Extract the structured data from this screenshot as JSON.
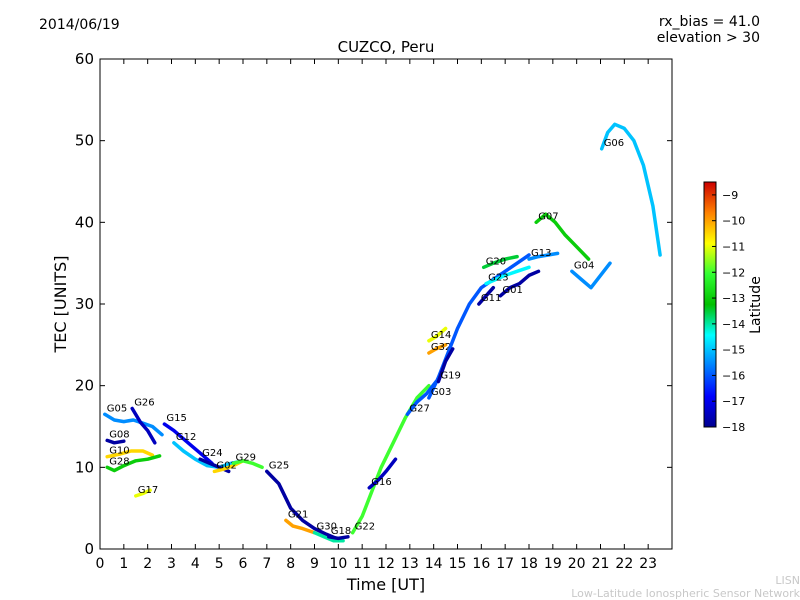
{
  "date_label": "2014/06/19",
  "info": {
    "line1": "rx_bias = 41.0",
    "line2": "elevation > 30"
  },
  "credit": {
    "line1": "LISN",
    "line2": "Low-Latitude Ionospheric Sensor Network"
  },
  "chart_data": {
    "type": "scatter",
    "title": "CUZCO, Peru",
    "xlabel": "Time [UT]",
    "ylabel": "TEC [UNITS]",
    "xlim": [
      0,
      24
    ],
    "ylim": [
      0,
      60
    ],
    "x_ticks": [
      0,
      1,
      2,
      3,
      4,
      5,
      6,
      7,
      8,
      9,
      10,
      11,
      12,
      13,
      14,
      15,
      16,
      17,
      18,
      19,
      20,
      21,
      22,
      23
    ],
    "y_ticks": [
      0,
      10,
      20,
      30,
      40,
      50,
      60
    ],
    "colorbar": {
      "label": "Latitude",
      "min": -18,
      "max": -8.5,
      "ticks": [
        -9,
        -10,
        -11,
        -12,
        -13,
        -14,
        -15,
        -16,
        -17,
        -18
      ]
    },
    "series": [
      {
        "name": "G05",
        "lat": -15.5,
        "x": [
          0.2,
          0.6,
          1.0,
          1.4,
          1.8,
          2.2,
          2.6
        ],
        "y": [
          16.5,
          15.8,
          15.6,
          15.8,
          15.4,
          15.0,
          14.0
        ]
      },
      {
        "name": "G26",
        "lat": -17.5,
        "x": [
          1.35,
          1.7,
          2.0,
          2.3
        ],
        "y": [
          17.2,
          15.5,
          14.5,
          13.0
        ]
      },
      {
        "name": "G08",
        "lat": -17.8,
        "x": [
          0.3,
          0.6,
          1.0
        ],
        "y": [
          13.3,
          13.0,
          13.2
        ]
      },
      {
        "name": "G10",
        "lat": -10.5,
        "x": [
          0.3,
          0.8,
          1.3,
          1.8,
          2.2
        ],
        "y": [
          11.3,
          11.6,
          12.0,
          12.0,
          11.5
        ]
      },
      {
        "name": "G28",
        "lat": -13.0,
        "x": [
          0.3,
          0.6,
          1.0,
          1.5,
          2.0,
          2.5
        ],
        "y": [
          10.0,
          9.6,
          10.2,
          10.8,
          11.0,
          11.4
        ]
      },
      {
        "name": "G17",
        "lat": -11.0,
        "x": [
          1.5,
          1.8,
          2.1
        ],
        "y": [
          6.5,
          6.8,
          7.2
        ]
      },
      {
        "name": "G15",
        "lat": -17.0,
        "x": [
          2.7,
          3.1,
          3.5,
          3.9,
          4.3,
          4.7
        ],
        "y": [
          15.3,
          14.5,
          13.5,
          12.5,
          11.5,
          10.5
        ]
      },
      {
        "name": "G12",
        "lat": -15.0,
        "x": [
          3.1,
          3.5,
          4.0,
          4.5,
          5.0,
          5.5,
          6.0
        ],
        "y": [
          13.0,
          12.0,
          11.0,
          10.2,
          10.0,
          10.5,
          10.8
        ]
      },
      {
        "name": "G24",
        "lat": -17.8,
        "x": [
          4.2,
          4.6,
          5.0,
          5.4
        ],
        "y": [
          11.0,
          10.5,
          10.0,
          9.5
        ]
      },
      {
        "name": "G02",
        "lat": -10.5,
        "x": [
          4.8,
          5.2,
          5.6,
          6.0
        ],
        "y": [
          9.5,
          9.8,
          10.2,
          10.8
        ]
      },
      {
        "name": "G29",
        "lat": -12.0,
        "x": [
          5.6,
          6.0,
          6.4,
          6.8
        ],
        "y": [
          10.5,
          10.8,
          10.5,
          10.0
        ]
      },
      {
        "name": "G25",
        "lat": -17.8,
        "x": [
          7.0,
          7.5,
          8.0,
          8.5,
          9.0,
          9.5,
          10.0
        ],
        "y": [
          9.5,
          8.0,
          5.0,
          3.5,
          2.5,
          1.8,
          1.2
        ]
      },
      {
        "name": "G21",
        "lat": -10.0,
        "x": [
          7.8,
          8.1,
          8.5,
          9.0
        ],
        "y": [
          3.5,
          2.8,
          2.5,
          2.0
        ]
      },
      {
        "name": "G30",
        "lat": -14.0,
        "x": [
          9.0,
          9.4,
          9.8,
          10.2
        ],
        "y": [
          2.0,
          1.5,
          1.0,
          1.0
        ]
      },
      {
        "name": "G18",
        "lat": -17.8,
        "x": [
          9.6,
          10.0,
          10.4
        ],
        "y": [
          1.5,
          1.3,
          1.5
        ]
      },
      {
        "name": "G22",
        "lat": -12.0,
        "x": [
          10.6,
          11.0,
          11.4,
          11.8,
          12.3,
          12.8,
          13.3,
          13.8
        ],
        "y": [
          2.0,
          4.0,
          7.0,
          10.0,
          13.0,
          16.0,
          18.5,
          20.0
        ]
      },
      {
        "name": "G16",
        "lat": -17.5,
        "x": [
          11.3,
          11.7,
          12.0,
          12.4
        ],
        "y": [
          7.5,
          8.5,
          9.5,
          11.0
        ]
      },
      {
        "name": "G27",
        "lat": -16.0,
        "x": [
          12.9,
          13.3,
          13.7,
          14.1
        ],
        "y": [
          16.5,
          18.0,
          19.0,
          20.5
        ]
      },
      {
        "name": "G14",
        "lat": -11.0,
        "x": [
          13.8,
          14.1,
          14.5
        ],
        "y": [
          25.5,
          26.0,
          27.0
        ]
      },
      {
        "name": "G32",
        "lat": -10.0,
        "x": [
          13.8,
          14.1,
          14.5
        ],
        "y": [
          24.0,
          24.5,
          25.0
        ]
      },
      {
        "name": "G03",
        "lat": -16.0,
        "x": [
          13.8,
          14.2,
          14.6,
          15.0,
          15.5,
          16.0,
          16.5,
          17.0,
          17.5,
          18.0
        ],
        "y": [
          18.5,
          21.0,
          24.0,
          27.0,
          30.0,
          32.0,
          33.0,
          34.0,
          35.0,
          36.0
        ]
      },
      {
        "name": "G19",
        "lat": -17.8,
        "x": [
          14.2,
          14.5,
          14.8
        ],
        "y": [
          20.5,
          23.0,
          24.5
        ]
      },
      {
        "name": "G11",
        "lat": -17.8,
        "x": [
          15.9,
          16.2,
          16.5
        ],
        "y": [
          30.0,
          31.0,
          32.0
        ]
      },
      {
        "name": "G20",
        "lat": -13.5,
        "x": [
          16.1,
          16.5,
          17.0,
          17.5
        ],
        "y": [
          34.5,
          35.0,
          35.5,
          35.8
        ]
      },
      {
        "name": "G23",
        "lat": -14.5,
        "x": [
          16.2,
          16.6,
          17.0,
          17.5,
          18.0
        ],
        "y": [
          32.5,
          33.0,
          33.5,
          34.0,
          34.5
        ]
      },
      {
        "name": "G01",
        "lat": -17.8,
        "x": [
          16.8,
          17.2,
          17.6,
          18.0,
          18.4
        ],
        "y": [
          31.0,
          32.0,
          32.5,
          33.5,
          34.0
        ]
      },
      {
        "name": "G13",
        "lat": -15.5,
        "x": [
          18.0,
          18.4,
          18.8,
          19.2
        ],
        "y": [
          35.5,
          35.8,
          36.0,
          36.2
        ]
      },
      {
        "name": "G07",
        "lat": -13.0,
        "x": [
          18.3,
          18.7,
          19.1,
          19.5,
          20.0,
          20.5
        ],
        "y": [
          40.0,
          41.0,
          40.0,
          38.5,
          37.0,
          35.5
        ]
      },
      {
        "name": "G04",
        "lat": -15.5,
        "x": [
          19.8,
          20.2,
          20.6,
          21.0,
          21.4
        ],
        "y": [
          34.0,
          33.0,
          32.0,
          33.5,
          35.0
        ]
      },
      {
        "name": "G06",
        "lat": -15.0,
        "x": [
          21.05,
          21.3,
          21.6,
          22.0,
          22.4,
          22.8,
          23.2,
          23.5
        ],
        "y": [
          49.0,
          51.0,
          52.0,
          51.5,
          50.0,
          47.0,
          42.0,
          36.0
        ]
      }
    ]
  }
}
